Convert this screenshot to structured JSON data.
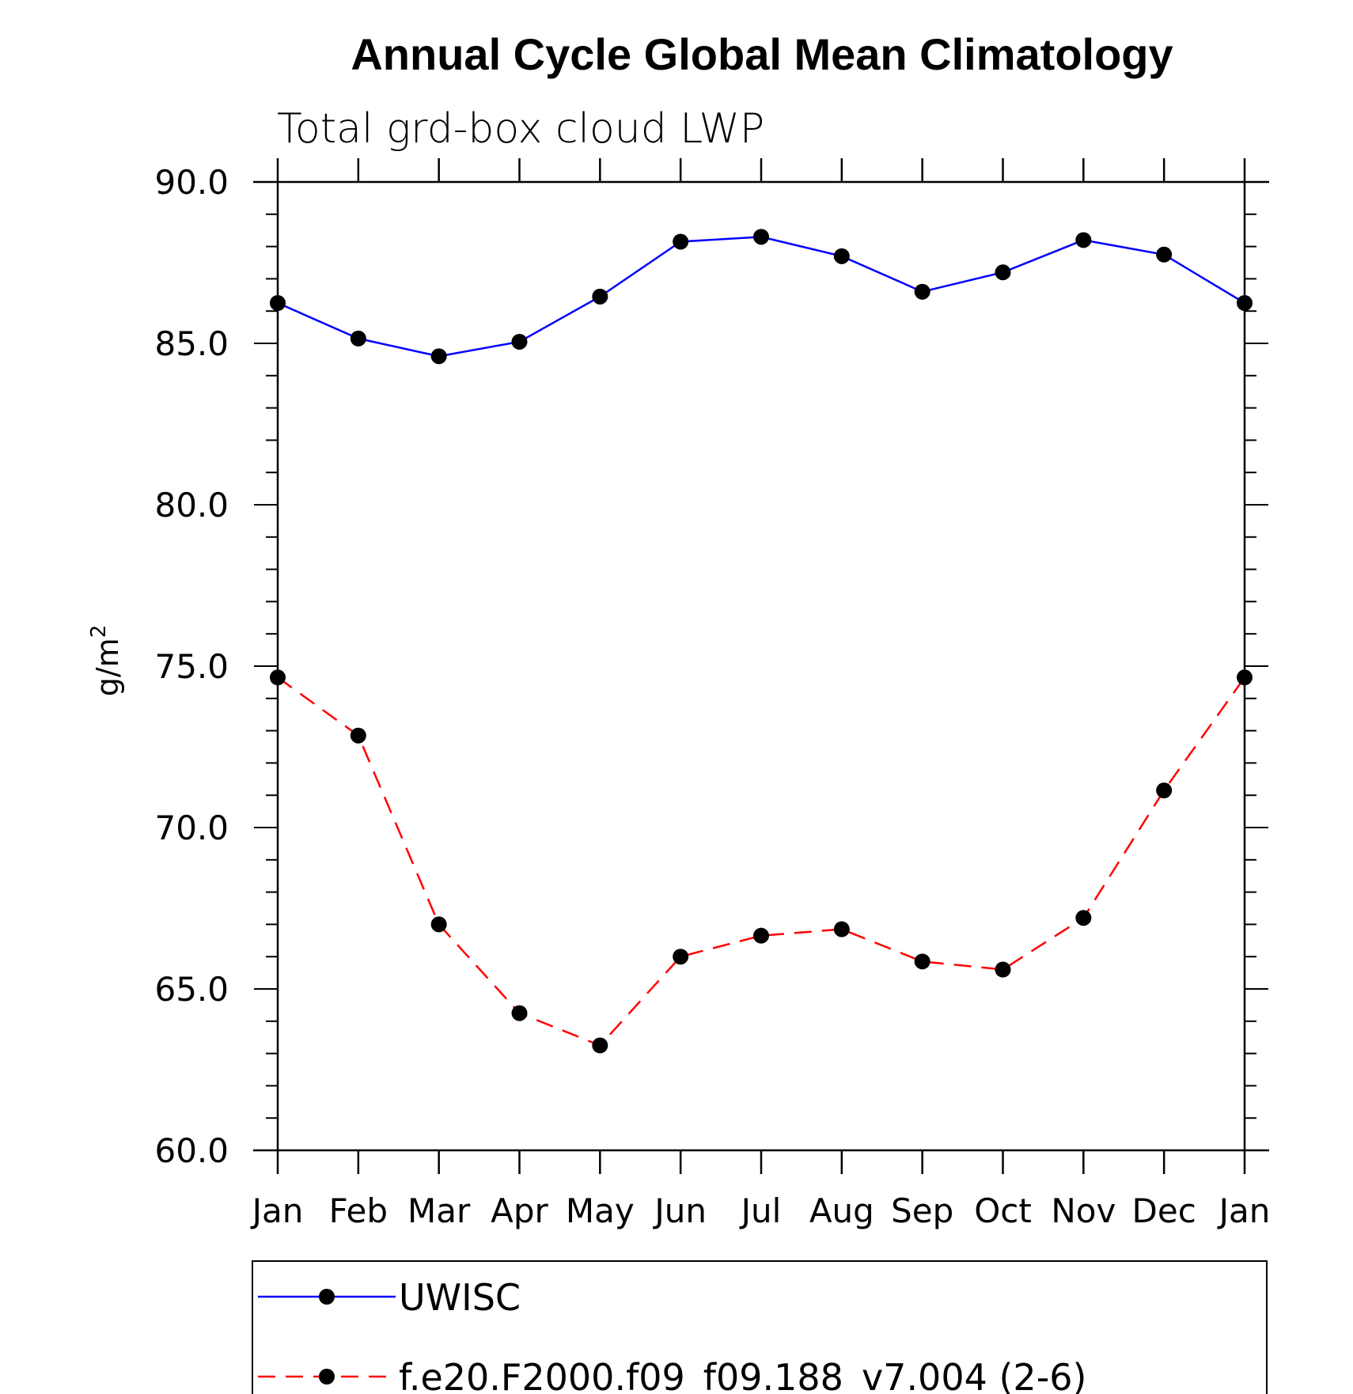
{
  "chart_data": {
    "type": "line",
    "title": "Annual Cycle Global Mean Climatology",
    "subtitle": "Total grd-box cloud LWP",
    "xlabel": "",
    "ylabel": "g/m",
    "ylabel_superscript": "2",
    "categories": [
      "Jan",
      "Feb",
      "Mar",
      "Apr",
      "May",
      "Jun",
      "Jul",
      "Aug",
      "Sep",
      "Oct",
      "Nov",
      "Dec",
      "Jan"
    ],
    "ylim": [
      60.0,
      90.0
    ],
    "yticks": [
      "60.0",
      "65.0",
      "70.0",
      "75.0",
      "80.0",
      "85.0",
      "90.0"
    ],
    "legend_position": "bottom",
    "grid": false,
    "series": [
      {
        "name": "UWISC",
        "color": "#0000ff",
        "dash": "solid",
        "marker": "filled-circle",
        "values": [
          86.25,
          85.15,
          84.6,
          85.05,
          86.45,
          88.15,
          88.3,
          87.7,
          86.6,
          87.2,
          88.2,
          87.75,
          86.25
        ]
      },
      {
        "name": "f.e20.F2000.f09_f09.188_v7.004 (2-6)",
        "color": "#ff0000",
        "dash": "dashed",
        "marker": "filled-circle",
        "values": [
          74.65,
          72.85,
          67.0,
          64.25,
          63.25,
          66.0,
          66.65,
          66.85,
          65.85,
          65.6,
          67.2,
          71.15,
          74.65
        ]
      }
    ]
  }
}
